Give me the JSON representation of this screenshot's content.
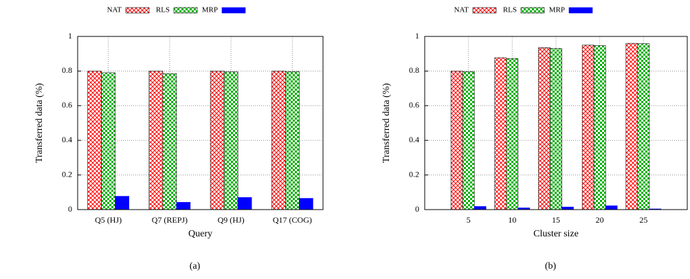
{
  "chart_data": [
    {
      "type": "bar",
      "caption": "(a)",
      "xlabel": "Query",
      "ylabel": "Transferred data (%)",
      "categories": [
        "Q5 (HJ)",
        "Q7 (REPJ)",
        "Q9 (HJ)",
        "Q17 (COG)"
      ],
      "series": [
        {
          "name": "NAT",
          "color": "#ff0000",
          "pattern": "crosshatch",
          "values": [
            0.8,
            0.8,
            0.8,
            0.8
          ]
        },
        {
          "name": "RLS",
          "color": "#00b000",
          "pattern": "dots",
          "values": [
            0.79,
            0.785,
            0.795,
            0.797
          ]
        },
        {
          "name": "MRP",
          "color": "#0000ff",
          "pattern": "solid",
          "values": [
            0.077,
            0.042,
            0.07,
            0.065
          ]
        }
      ],
      "ylim": [
        0,
        1
      ],
      "yticks": [
        0,
        0.2,
        0.4,
        0.6,
        0.8,
        1
      ],
      "grid": true,
      "legend": "top"
    },
    {
      "type": "bar",
      "caption": "(b)",
      "xlabel": "Cluster size",
      "ylabel": "Transferred data (%)",
      "categories": [
        "5",
        "10",
        "15",
        "20",
        "25"
      ],
      "series": [
        {
          "name": "NAT",
          "color": "#ff0000",
          "pattern": "crosshatch",
          "values": [
            0.8,
            0.877,
            0.935,
            0.95,
            0.96
          ]
        },
        {
          "name": "RLS",
          "color": "#00b000",
          "pattern": "dots",
          "values": [
            0.797,
            0.872,
            0.93,
            0.947,
            0.958
          ]
        },
        {
          "name": "MRP",
          "color": "#0000ff",
          "pattern": "solid",
          "values": [
            0.018,
            0.01,
            0.015,
            0.022,
            0.004
          ]
        }
      ],
      "ylim": [
        0,
        1
      ],
      "yticks": [
        0,
        0.2,
        0.4,
        0.6,
        0.8,
        1
      ],
      "grid": true,
      "legend": "top"
    }
  ]
}
